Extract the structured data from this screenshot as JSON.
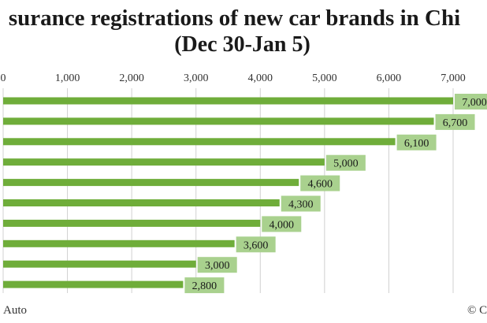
{
  "chart_data": {
    "type": "bar",
    "orientation": "horizontal",
    "title_line1": "surance registrations of new car brands in Chi",
    "title_line2": "(Dec 30-Jan 5)",
    "categories": [
      "",
      "",
      "",
      "",
      "",
      "",
      "",
      "",
      "",
      ""
    ],
    "values": [
      7000,
      6700,
      6100,
      5000,
      4600,
      4300,
      4000,
      3600,
      3000,
      2800
    ],
    "value_labels": [
      "7,000",
      "6,700",
      "6,100",
      "5,000",
      "4,600",
      "4,300",
      "4,000",
      "3,600",
      "3,000",
      "2,800"
    ],
    "xlim": [
      0,
      7000
    ],
    "x_ticks": [
      0,
      1000,
      2000,
      3000,
      4000,
      5000,
      6000,
      7000
    ],
    "x_tick_labels": [
      "0",
      "1,000",
      "2,000",
      "3,000",
      "4,000",
      "5,000",
      "6,000",
      "7,000"
    ],
    "x_axis_position": "top",
    "grid": true,
    "legend": "none",
    "bar_color": "#6fad3a",
    "label_box_color": "#a9d18e",
    "gridline_color": "#d0d0d0"
  },
  "footer": {
    "source": "Auto",
    "copyright": "© C"
  }
}
